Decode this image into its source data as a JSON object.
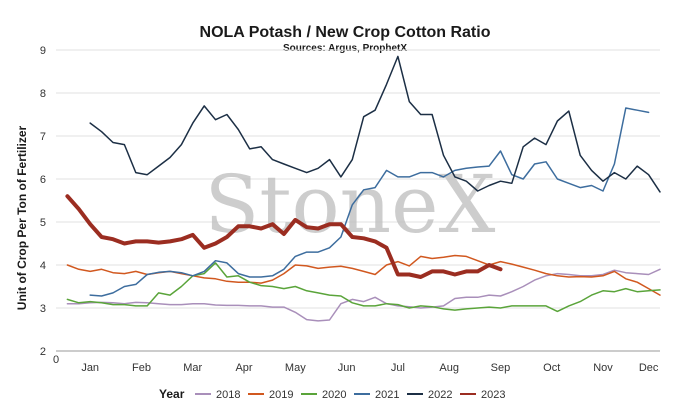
{
  "chart_data": {
    "type": "line",
    "title": "NOLA Potash / New Crop Cotton Ratio",
    "subtitle": "Sources: Argus, ProphetX",
    "ylabel": "Unit of Crop Per Ton of Fertilizer",
    "xlabel": "",
    "watermark": "StoneX",
    "ylim": [
      2,
      9
    ],
    "yticks": [
      2,
      3,
      4,
      5,
      6,
      7,
      8,
      9
    ],
    "xlim": [
      0,
      53
    ],
    "x_origin_label": "0",
    "month_ticks": [
      {
        "label": "Jan",
        "week": 3
      },
      {
        "label": "Feb",
        "week": 7.5
      },
      {
        "label": "Mar",
        "week": 12
      },
      {
        "label": "Apr",
        "week": 16.5
      },
      {
        "label": "May",
        "week": 21
      },
      {
        "label": "Jun",
        "week": 25.5
      },
      {
        "label": "Jul",
        "week": 30
      },
      {
        "label": "Aug",
        "week": 34.5
      },
      {
        "label": "Sep",
        "week": 39
      },
      {
        "label": "Oct",
        "week": 43.5
      },
      {
        "label": "Nov",
        "week": 48
      },
      {
        "label": "Dec",
        "week": 52
      }
    ],
    "grid": "horizontal",
    "legend": {
      "title": "Year",
      "position": "bottom"
    },
    "series": [
      {
        "name": "2018",
        "color": "#a98fba",
        "width": 1.5,
        "start_week": 1,
        "values": [
          3.1,
          3.1,
          3.12,
          3.13,
          3.12,
          3.1,
          3.13,
          3.12,
          3.1,
          3.08,
          3.08,
          3.1,
          3.1,
          3.07,
          3.06,
          3.06,
          3.05,
          3.05,
          3.02,
          3.02,
          2.9,
          2.73,
          2.7,
          2.72,
          3.1,
          3.2,
          3.15,
          3.25,
          3.1,
          3.05,
          3.03,
          3.0,
          3.02,
          3.05,
          3.22,
          3.25,
          3.25,
          3.3,
          3.28,
          3.38,
          3.5,
          3.65,
          3.75,
          3.8,
          3.78,
          3.75,
          3.75,
          3.78,
          3.88,
          3.82,
          3.8,
          3.78,
          3.9
        ]
      },
      {
        "name": "2019",
        "color": "#d1581f",
        "width": 1.5,
        "start_week": 1,
        "values": [
          4.0,
          3.9,
          3.85,
          3.9,
          3.82,
          3.8,
          3.85,
          3.78,
          3.82,
          3.85,
          3.8,
          3.75,
          3.7,
          3.68,
          3.62,
          3.6,
          3.6,
          3.58,
          3.65,
          3.8,
          4.0,
          3.98,
          3.92,
          3.95,
          3.97,
          3.92,
          3.85,
          3.78,
          4.0,
          4.08,
          3.98,
          4.2,
          4.15,
          4.18,
          4.22,
          4.2,
          4.1,
          4.0,
          4.08,
          4.02,
          3.95,
          3.88,
          3.8,
          3.75,
          3.72,
          3.73,
          3.72,
          3.75,
          3.85,
          3.68,
          3.6,
          3.45,
          3.3
        ]
      },
      {
        "name": "2020",
        "color": "#5aa43a",
        "width": 1.5,
        "start_week": 1,
        "values": [
          3.2,
          3.12,
          3.15,
          3.12,
          3.08,
          3.08,
          3.05,
          3.05,
          3.35,
          3.3,
          3.5,
          3.75,
          3.8,
          4.05,
          3.72,
          3.75,
          3.6,
          3.52,
          3.5,
          3.45,
          3.5,
          3.4,
          3.35,
          3.3,
          3.28,
          3.12,
          3.05,
          3.05,
          3.1,
          3.08,
          3.0,
          3.05,
          3.03,
          2.98,
          2.95,
          2.98,
          3.0,
          3.02,
          3.0,
          3.05,
          3.05,
          3.05,
          3.05,
          2.92,
          3.05,
          3.15,
          3.3,
          3.4,
          3.38,
          3.45,
          3.38,
          3.4,
          3.42
        ]
      },
      {
        "name": "2021",
        "color": "#3d6d9e",
        "width": 1.5,
        "start_week": 3,
        "values": [
          3.3,
          3.28,
          3.35,
          3.5,
          3.55,
          3.78,
          3.83,
          3.85,
          3.82,
          3.75,
          3.85,
          4.1,
          4.05,
          3.8,
          3.72,
          3.72,
          3.75,
          3.9,
          4.2,
          4.3,
          4.3,
          4.4,
          4.65,
          5.4,
          5.75,
          5.8,
          6.2,
          6.05,
          6.05,
          6.15,
          6.15,
          6.05,
          6.2,
          6.25,
          6.28,
          6.3,
          6.65,
          6.1,
          6.0,
          6.35,
          6.4,
          6.0,
          5.9,
          5.8,
          5.85,
          5.72,
          6.35,
          7.65,
          7.6,
          7.55
        ]
      },
      {
        "name": "2022",
        "color": "#1c2f45",
        "width": 1.5,
        "start_week": 3,
        "values": [
          7.3,
          7.1,
          6.85,
          6.8,
          6.15,
          6.1,
          6.3,
          6.5,
          6.8,
          7.3,
          7.7,
          7.38,
          7.5,
          7.15,
          6.7,
          6.75,
          6.45,
          6.35,
          6.25,
          6.15,
          6.25,
          6.45,
          6.05,
          6.45,
          7.45,
          7.6,
          8.2,
          8.85,
          7.8,
          7.5,
          7.5,
          6.55,
          6.05,
          5.95,
          5.72,
          5.85,
          5.95,
          5.9,
          6.75,
          6.95,
          6.8,
          7.35,
          7.58,
          6.55,
          6.2,
          5.95,
          6.15,
          6.0,
          6.3,
          6.1,
          5.7
        ]
      },
      {
        "name": "2023",
        "color": "#9b2d21",
        "width": 4,
        "start_week": 1,
        "values": [
          5.6,
          5.3,
          4.95,
          4.65,
          4.6,
          4.5,
          4.55,
          4.55,
          4.52,
          4.55,
          4.6,
          4.7,
          4.4,
          4.5,
          4.65,
          4.9,
          4.9,
          4.85,
          4.95,
          4.72,
          5.05,
          4.88,
          4.85,
          4.95,
          4.95,
          4.65,
          4.62,
          4.55,
          4.4,
          3.78,
          3.78,
          3.72,
          3.85,
          3.85,
          3.78,
          3.85,
          3.85,
          4.0,
          3.9
        ]
      }
    ]
  },
  "colors": {
    "grid": "#e2e2e2",
    "axis": "#9a9a9a"
  }
}
